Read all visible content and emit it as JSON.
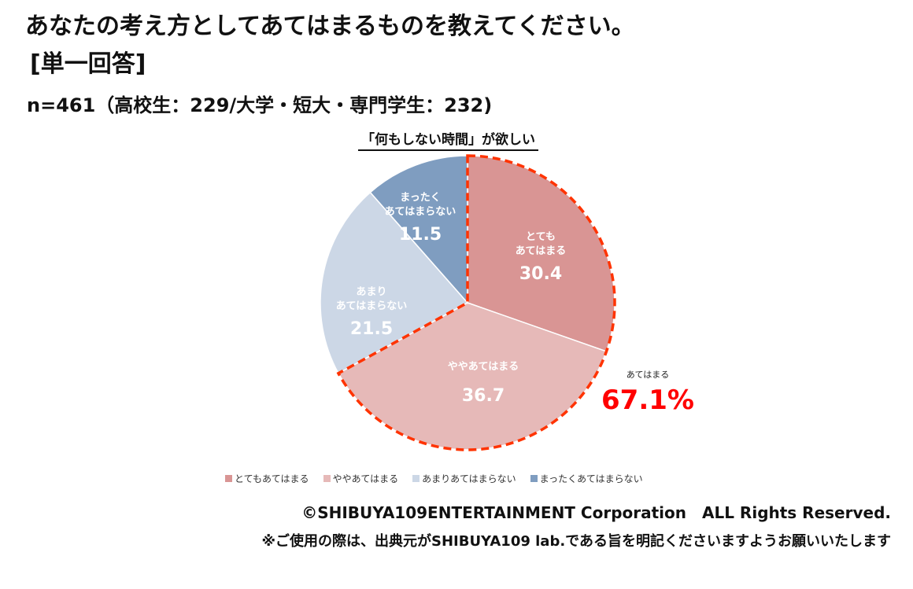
{
  "header": {
    "title_line1": "あなたの考え方としてあてはまるものを教えてください。",
    "title_line2": "[単一回答]",
    "sample": "n=461（高校生：229/大学・短大・専門学生：232)"
  },
  "chart_data": {
    "type": "pie",
    "title": "「何もしない時間」が欲しい",
    "start": "top",
    "direction": "clockwise",
    "slices": [
      {
        "label": "とても\nあてはまる",
        "legend": "とてもあてはまる",
        "value": 30.4,
        "color": "#d99594"
      },
      {
        "label": "ややあてはまる",
        "legend": "ややあてはまる",
        "value": 36.7,
        "color": "#e6b9b8"
      },
      {
        "label": "あまり\nあてはまらない",
        "legend": "あまりあてはまらない",
        "value": 21.5,
        "color": "#ccd7e6"
      },
      {
        "label": "まったく\nあてはまらない",
        "legend": "まったくあてはまらない",
        "value": 11.5,
        "color": "#7f9dc0"
      }
    ],
    "annotation": {
      "label": "あてはまる",
      "value": "67.1%",
      "color": "#ff0000",
      "outline_color": "#ff3300"
    },
    "legend_position": "bottom"
  },
  "footer": {
    "copyright": "©SHIBUYA109ENTERTAINMENT Corporation　ALL Rights Reserved.",
    "note": "※ご使用の際は、出典元がSHIBUYA109 lab.である旨を明記くださいますようお願いいたします"
  }
}
